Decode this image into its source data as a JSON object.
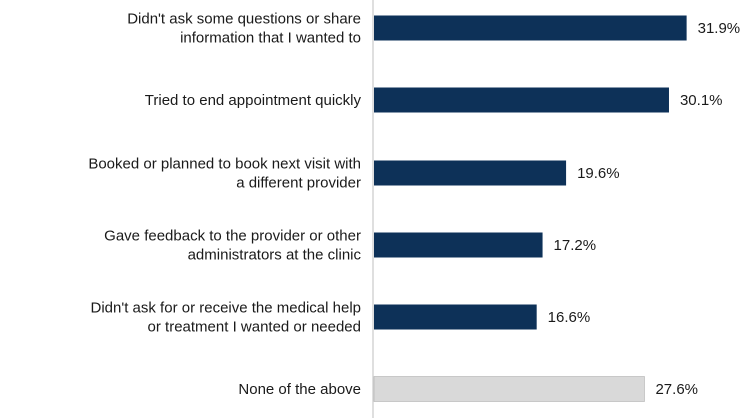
{
  "chart_data": {
    "type": "bar",
    "orientation": "horizontal",
    "categories": [
      [
        "Didn't ask some questions or share",
        "information that I wanted to"
      ],
      [
        "Tried to end appointment quickly"
      ],
      [
        "Booked or planned to book next visit with",
        "a different provider"
      ],
      [
        "Gave feedback to the provider or other",
        "administrators at the clinic"
      ],
      [
        "Didn't ask for or receive the medical help",
        "or treatment I wanted or needed"
      ],
      [
        "None of the above"
      ]
    ],
    "values": [
      31.9,
      30.1,
      19.6,
      17.2,
      16.6,
      27.6
    ],
    "value_labels": [
      "31.9%",
      "30.1%",
      "19.6%",
      "17.2%",
      "16.6%",
      "27.6%"
    ],
    "bar_colors": [
      "#0d3158",
      "#0d3158",
      "#0d3158",
      "#0d3158",
      "#0d3158",
      "#d9d9d9"
    ],
    "axis_color": "#bfbfbf",
    "title": "",
    "xlabel": "",
    "ylabel": "",
    "xlim": [
      0,
      100
    ],
    "grid": false,
    "legend": false
  }
}
